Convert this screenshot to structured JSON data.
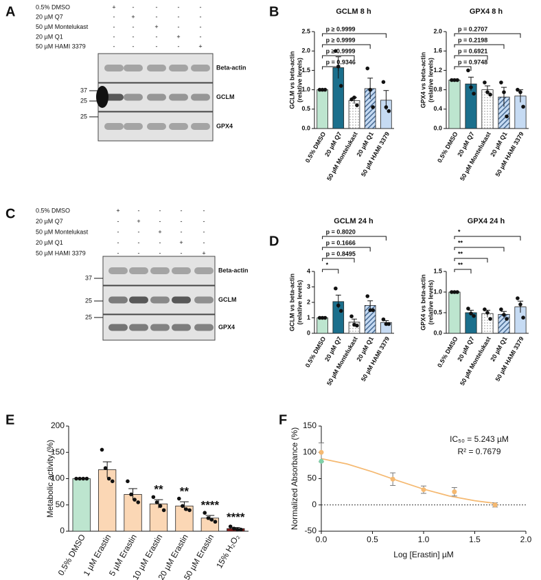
{
  "panels": [
    "A",
    "B",
    "C",
    "D",
    "E",
    "F"
  ],
  "blots": [
    {
      "treatments": [
        {
          "name": "0.5% DMSO",
          "lanes": [
            "+",
            "-",
            "-",
            "-",
            "-"
          ]
        },
        {
          "name": "20 µM Q7",
          "lanes": [
            "-",
            "+",
            "-",
            "-",
            "-"
          ]
        },
        {
          "name": "50 µM Montelukast",
          "lanes": [
            "-",
            "-",
            "+",
            "-",
            "-"
          ]
        },
        {
          "name": "20 µM Q1",
          "lanes": [
            "-",
            "-",
            "-",
            "+",
            "-"
          ]
        },
        {
          "name": "50 µM HAMI 3379",
          "lanes": [
            "-",
            "-",
            "-",
            "-",
            "+"
          ]
        }
      ],
      "bands": [
        "Beta-actin",
        "GCLM",
        "GPX4"
      ],
      "markers": [
        37,
        25,
        25
      ]
    },
    {
      "treatments": [
        {
          "name": "0.5% DMSO",
          "lanes": [
            "+",
            "-",
            "-",
            "-",
            "-"
          ]
        },
        {
          "name": "20 µM Q7",
          "lanes": [
            "-",
            "+",
            "-",
            "-",
            "-"
          ]
        },
        {
          "name": "50 µM Montelukast",
          "lanes": [
            "-",
            "-",
            "+",
            "-",
            "-"
          ]
        },
        {
          "name": "20 µM Q1",
          "lanes": [
            "-",
            "-",
            "-",
            "+",
            "-"
          ]
        },
        {
          "name": "50 µM HAMI 3379",
          "lanes": [
            "-",
            "-",
            "-",
            "-",
            "+"
          ]
        }
      ],
      "bands": [
        "Beta-actin",
        "GCLM",
        "GPX4"
      ],
      "markers": [
        37,
        25,
        25
      ]
    }
  ],
  "chart_data": [
    {
      "type": "bar",
      "title": "GCLM 8 h",
      "ylabel": [
        "GCLM vs beta-actin",
        "(relative levels)"
      ],
      "categories": [
        "0.5% DMSO",
        "20 µM Q7",
        "50 µM Montelukast",
        "20 µM Q1",
        "50 µM HAMI 3379"
      ],
      "values": [
        1.0,
        1.57,
        0.72,
        1.03,
        0.73
      ],
      "errors": [
        0,
        0.28,
        0.08,
        0.27,
        0.25
      ],
      "points": [
        [
          1,
          1,
          1
        ],
        [
          2.0,
          1.6,
          1.1
        ],
        [
          0.75,
          0.8,
          0.6
        ],
        [
          1.55,
          1.0,
          0.55
        ],
        [
          1.2,
          0.55,
          0.45
        ]
      ],
      "colors": [
        "#bde5cf",
        "#1b6f8c",
        "#ffffff",
        "#c6dbf3",
        "#c6dbf3"
      ],
      "patterns": [
        null,
        null,
        "dots",
        "hatch",
        null
      ],
      "ylim": [
        0,
        2.5
      ],
      "yticks": [
        {
          "value": 0,
          "label": "0.0"
        },
        0.5,
        {
          "value": 1,
          "label": "1.0"
        },
        1.5,
        {
          "value": 2,
          "label": "2.0"
        },
        2.5
      ],
      "comparisons": [
        "p = 0.9346",
        "p ≥ 0.9999",
        "p ≥ 0.9999",
        "p ≥ 0.9999"
      ]
    },
    {
      "type": "bar",
      "title": "GPX4 8 h",
      "ylabel": [
        "GPX4 vs beta-actin",
        "(relative levels)"
      ],
      "categories": [
        "0.5% DMSO",
        "20 µM Q7",
        "50 µM Montelukast",
        "20 µM Q1",
        "50 µM HAMI 3379"
      ],
      "values": [
        1.0,
        0.92,
        0.8,
        0.65,
        0.67
      ],
      "errors": [
        0,
        0.14,
        0.08,
        0.2,
        0.13
      ],
      "points": [
        [
          1,
          1,
          1
        ],
        [
          1.2,
          0.85,
          0.72
        ],
        [
          0.95,
          0.75,
          0.7
        ],
        [
          0.95,
          0.75,
          0.25
        ],
        [
          0.8,
          0.75,
          0.45
        ]
      ],
      "colors": [
        "#bde5cf",
        "#1b6f8c",
        "#ffffff",
        "#c6dbf3",
        "#c6dbf3"
      ],
      "patterns": [
        null,
        null,
        "dots",
        "hatch",
        null
      ],
      "ylim": [
        0,
        2.0
      ],
      "yticks": [
        {
          "value": 0,
          "label": "0.0"
        },
        0.4,
        0.8,
        1.2,
        1.6,
        {
          "value": 2,
          "label": "2.0"
        }
      ],
      "comparisons": [
        "p = 0.9748",
        "p = 0.6921",
        "p = 0.2198",
        "p = 0.2707"
      ]
    },
    {
      "type": "bar",
      "title": "GCLM 24 h",
      "ylabel": [
        "GCLM vs beta-actin",
        "(relative levels)"
      ],
      "categories": [
        "0.5% DMSO",
        "20 µM Q7",
        "50 µM Montelukast",
        "20 µM Q1",
        "50 µM HAMI 3379"
      ],
      "values": [
        1.0,
        2.05,
        0.72,
        1.8,
        0.7
      ],
      "errors": [
        0,
        0.42,
        0.2,
        0.3,
        0.12
      ],
      "points": [
        [
          1,
          1,
          1
        ],
        [
          2.9,
          1.8,
          1.45
        ],
        [
          1.1,
          0.55,
          0.5
        ],
        [
          2.4,
          1.5,
          1.5
        ],
        [
          0.9,
          0.6,
          0.6
        ]
      ],
      "colors": [
        "#bde5cf",
        "#1b6f8c",
        "#ffffff",
        "#c6dbf3",
        "#c6dbf3"
      ],
      "patterns": [
        null,
        null,
        "dots",
        "hatch",
        null
      ],
      "ylim": [
        0,
        4
      ],
      "yticks": [
        0,
        1,
        2,
        3,
        4
      ],
      "comparisons": [
        "*",
        "p = 0.8495",
        "p = 0.1666",
        "p = 0.8020"
      ]
    },
    {
      "type": "bar",
      "title": "GPX4 24 h",
      "ylabel": [
        "GPX4 vs beta-actin",
        "(relative levels)"
      ],
      "categories": [
        "0.5% DMSO",
        "20 µM Q7",
        "50 µM Montelukast",
        "20 µM Q1",
        "50 µM HAMI 3379"
      ],
      "values": [
        1.0,
        0.5,
        0.48,
        0.46,
        0.64
      ],
      "errors": [
        0,
        0.06,
        0.08,
        0.07,
        0.14
      ],
      "points": [
        [
          1,
          1,
          1
        ],
        [
          0.6,
          0.48,
          0.42
        ],
        [
          0.58,
          0.5,
          0.35
        ],
        [
          0.58,
          0.45,
          0.35
        ],
        [
          0.85,
          0.7,
          0.38
        ]
      ],
      "colors": [
        "#bde5cf",
        "#1b6f8c",
        "#ffffff",
        "#c6dbf3",
        "#c6dbf3"
      ],
      "patterns": [
        null,
        null,
        "dots",
        "hatch",
        null
      ],
      "ylim": [
        0,
        1.5
      ],
      "yticks": [
        {
          "value": 0,
          "label": "0.0"
        },
        0.5,
        {
          "value": 1,
          "label": "1.0"
        },
        1.5
      ],
      "comparisons": [
        "**",
        "**",
        "**",
        "*"
      ]
    },
    {
      "type": "bar",
      "ylabel": "Metabolic activity (%)",
      "categories": [
        "0.5% DMSO",
        "1 µM Erastin",
        "5 µM Erastin",
        "10 µM Erastin",
        "20 µM Erastin",
        "50 µM Erastin",
        "15% H₂O₂"
      ],
      "values": [
        100,
        117,
        70,
        52,
        48,
        25,
        5
      ],
      "errors": [
        0,
        15,
        11,
        8,
        8,
        5,
        2
      ],
      "points": [
        [
          100,
          100,
          100,
          100
        ],
        [
          155,
          120,
          100,
          95
        ],
        [
          95,
          70,
          60,
          55
        ],
        [
          65,
          55,
          48,
          40
        ],
        [
          62,
          48,
          42,
          40
        ],
        [
          35,
          25,
          22,
          18
        ],
        [
          9,
          5,
          3,
          3
        ]
      ],
      "colors": [
        "#bde5cf",
        "#fbd7b5",
        "#fbd7b5",
        "#fbd7b5",
        "#fbd7b5",
        "#fbd7b5",
        "#8b1a1a"
      ],
      "annotations": [
        null,
        null,
        null,
        "**",
        "**",
        "****",
        "****"
      ],
      "ylim": [
        0,
        200
      ],
      "yticks": [
        0,
        50,
        100,
        150,
        200
      ]
    },
    {
      "type": "scatter",
      "xlabel": "Log [Erastin] µM",
      "ylabel": "Normalized Absorbance (%)",
      "series": [
        {
          "color": "#f5b971",
          "x": [
            0,
            0.699,
            1.0,
            1.301,
            1.699
          ],
          "values": [
            100,
            49,
            29,
            25,
            0
          ],
          "errors": [
            18,
            12,
            7,
            8,
            4
          ]
        },
        {
          "color": "#7fd1a8",
          "x": [
            0
          ],
          "values": [
            83
          ]
        }
      ],
      "fit": {
        "color": "#f5b971",
        "x": [
          0,
          0.25,
          0.5,
          0.75,
          1.0,
          1.25,
          1.5,
          1.7
        ],
        "y": [
          88,
          78,
          63,
          46,
          30,
          17,
          8,
          3
        ]
      },
      "annotations": [
        "IC₅₀ = 5.243 µM",
        "R² = 0.7679"
      ],
      "xlim": [
        0,
        2.0
      ],
      "xticks": [
        {
          "value": 0,
          "label": "0.0"
        },
        0.5,
        {
          "value": 1,
          "label": "1.0"
        },
        1.5,
        {
          "value": 2,
          "label": "2.0"
        }
      ],
      "ylim": [
        -50,
        150
      ],
      "yticks": [
        -50,
        0,
        50,
        100,
        150
      ]
    }
  ]
}
